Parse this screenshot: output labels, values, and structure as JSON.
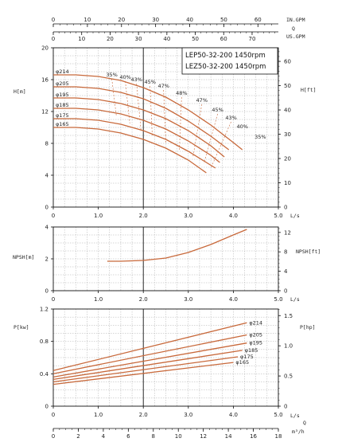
{
  "chart_data": [
    {
      "id": "head",
      "type": "line",
      "title_lines": [
        "LEP50-32-200 1450rpm",
        "LEZ50-32-200 1450rpm"
      ],
      "ylabel_left": "H[m]",
      "ylabel_right": "H[ft]",
      "xlabel": "L/s",
      "xlim": [
        0,
        5
      ],
      "ylim": [
        0,
        20
      ],
      "x_ticks": [
        "0",
        "1.0",
        "2.0",
        "3.0",
        "4.0",
        "5.0"
      ],
      "y_ticks_left": [
        "0",
        "4",
        "8",
        "12",
        "16",
        "20"
      ],
      "y_ticks_right": [
        "0",
        "10",
        "20",
        "30",
        "40",
        "50",
        "60"
      ],
      "top_axis_1_label": "IN.GPM",
      "top_axis_1_ticks": [
        "0",
        "10",
        "20",
        "30",
        "40",
        "50",
        "60"
      ],
      "top_axis_2_label": "Q",
      "top_axis_3_label": "US.GPM",
      "top_axis_3_ticks": [
        "0",
        "10",
        "20",
        "30",
        "40",
        "50",
        "60",
        "70"
      ],
      "series": [
        {
          "name": "φ214",
          "x": [
            0,
            0.5,
            1.0,
            1.5,
            2.0,
            2.5,
            3.0,
            3.5,
            4.0,
            4.2
          ],
          "y": [
            16.6,
            16.6,
            16.4,
            15.9,
            15.0,
            13.8,
            12.2,
            10.3,
            8.1,
            7.2
          ]
        },
        {
          "name": "φ205",
          "x": [
            0,
            0.5,
            1.0,
            1.5,
            2.0,
            2.5,
            3.0,
            3.5,
            3.9
          ],
          "y": [
            15.1,
            15.1,
            14.9,
            14.4,
            13.6,
            12.4,
            10.8,
            8.9,
            7.2
          ]
        },
        {
          "name": "φ195",
          "x": [
            0,
            0.5,
            1.0,
            1.5,
            2.0,
            2.5,
            3.0,
            3.5,
            3.8
          ],
          "y": [
            13.7,
            13.7,
            13.5,
            13.0,
            12.2,
            11.1,
            9.6,
            7.7,
            6.3
          ]
        },
        {
          "name": "φ185",
          "x": [
            0,
            0.5,
            1.0,
            1.5,
            2.0,
            2.5,
            3.0,
            3.5,
            3.7
          ],
          "y": [
            12.4,
            12.4,
            12.2,
            11.7,
            10.9,
            9.8,
            8.3,
            6.5,
            5.6
          ]
        },
        {
          "name": "φ175",
          "x": [
            0,
            0.5,
            1.0,
            1.5,
            2.0,
            2.5,
            3.0,
            3.6
          ],
          "y": [
            11.1,
            11.1,
            10.9,
            10.4,
            9.6,
            8.5,
            7.0,
            4.9
          ]
        },
        {
          "name": "φ165",
          "x": [
            0,
            0.5,
            1.0,
            1.5,
            2.0,
            2.5,
            3.0,
            3.4
          ],
          "y": [
            10.0,
            10.0,
            9.8,
            9.3,
            8.5,
            7.4,
            5.9,
            4.3
          ]
        }
      ],
      "efficiency_labels": [
        "35%",
        "40%",
        "43%",
        "45%",
        "47%",
        "48%",
        "47%",
        "45%",
        "43%",
        "40%",
        "35%"
      ],
      "efficiency_positions": [
        {
          "x": 1.3,
          "y": 16.4
        },
        {
          "x": 1.6,
          "y": 16.1
        },
        {
          "x": 1.85,
          "y": 15.8
        },
        {
          "x": 2.15,
          "y": 15.5
        },
        {
          "x": 2.45,
          "y": 15.0
        },
        {
          "x": 2.85,
          "y": 14.1
        },
        {
          "x": 3.3,
          "y": 13.2
        },
        {
          "x": 3.65,
          "y": 12.0
        },
        {
          "x": 3.95,
          "y": 11.0
        },
        {
          "x": 4.2,
          "y": 9.9
        },
        {
          "x": 4.6,
          "y": 8.6
        }
      ]
    },
    {
      "id": "npsh",
      "type": "line",
      "ylabel_left": "NPSH[m]",
      "ylabel_right": "NPSH[ft]",
      "xlabel": "L/s",
      "xlim": [
        0,
        5
      ],
      "ylim": [
        0,
        4
      ],
      "x_ticks": [
        "0",
        "1.0",
        "2.0",
        "3.0",
        "4.0",
        "5.0"
      ],
      "y_ticks_left": [
        "0",
        "2",
        "4"
      ],
      "y_ticks_right": [
        "0",
        "4",
        "8",
        "12"
      ],
      "series": [
        {
          "x": [
            1.2,
            1.5,
            2.0,
            2.5,
            3.0,
            3.5,
            4.0,
            4.3
          ],
          "y": [
            1.85,
            1.85,
            1.9,
            2.05,
            2.4,
            2.9,
            3.5,
            3.85
          ]
        }
      ]
    },
    {
      "id": "power",
      "type": "line",
      "ylabel_left": "P[kw]",
      "ylabel_right": "P[hp]",
      "xlabel": "L/s",
      "xlim": [
        0,
        5
      ],
      "ylim": [
        0,
        1.2
      ],
      "x_ticks": [
        "0",
        "1.0",
        "2.0",
        "3.0",
        "4.0",
        "5.0"
      ],
      "y_ticks_left": [
        "0",
        "0.4",
        "0.8",
        "1.2"
      ],
      "y_ticks_right": [
        "0",
        "0.5",
        "1.0",
        "1.5"
      ],
      "bottom_axis_label": "Q",
      "bottom_axis_unit": "m³/h",
      "bottom_axis_ticks": [
        "0",
        "2",
        "4",
        "6",
        "8",
        "10",
        "12",
        "14",
        "16",
        "18"
      ],
      "series": [
        {
          "name": "φ214",
          "x": [
            0,
            4.3
          ],
          "y": [
            0.44,
            1.03
          ]
        },
        {
          "name": "φ205",
          "x": [
            0,
            4.3
          ],
          "y": [
            0.4,
            0.88
          ]
        },
        {
          "name": "φ195",
          "x": [
            0,
            4.3
          ],
          "y": [
            0.36,
            0.78
          ]
        },
        {
          "name": "φ185",
          "x": [
            0,
            4.2
          ],
          "y": [
            0.33,
            0.69
          ]
        },
        {
          "name": "φ175",
          "x": [
            0,
            4.1
          ],
          "y": [
            0.3,
            0.61
          ]
        },
        {
          "name": "φ165",
          "x": [
            0,
            4.0
          ],
          "y": [
            0.27,
            0.54
          ]
        }
      ]
    }
  ],
  "colors": {
    "curve": "#c8693b",
    "grid": "#9a9a9a",
    "axis": "#111111"
  }
}
